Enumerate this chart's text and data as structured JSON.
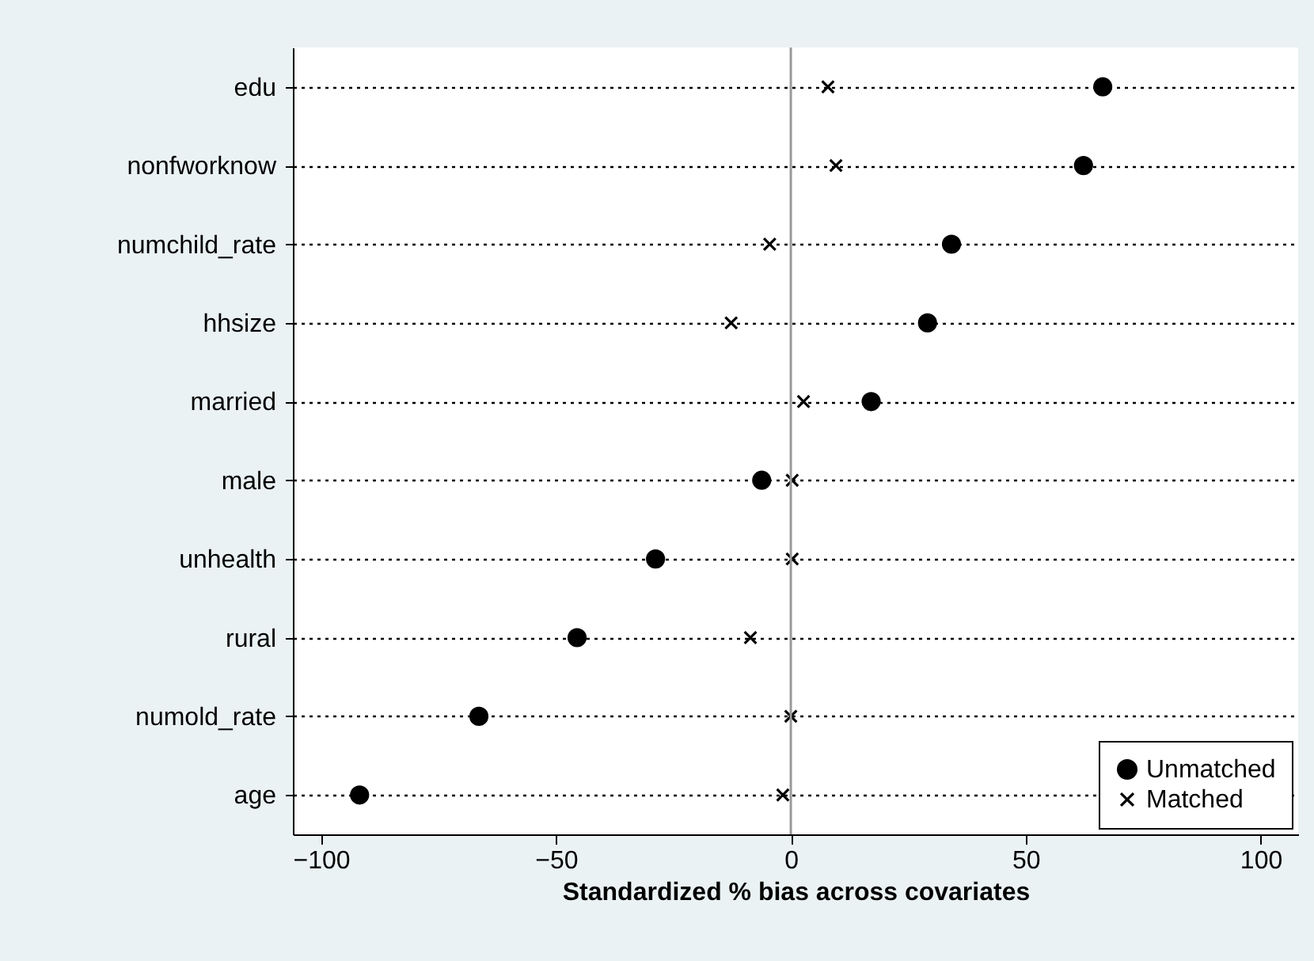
{
  "chart_data": {
    "type": "scatter",
    "xlabel": "Standardized % bias across covariates",
    "categories": [
      "edu",
      "nonfworknow",
      "numchild_rate",
      "hhsize",
      "married",
      "male",
      "unhealth",
      "rural",
      "numold_rate",
      "age"
    ],
    "series": [
      {
        "name": "Unmatched",
        "color": "#000000",
        "marker": "circle",
        "values": [
          66.4,
          62.3,
          34.2,
          29.1,
          17.1,
          -6.2,
          -28.8,
          -45.5,
          -66.4,
          -91.8
        ]
      },
      {
        "name": "Matched",
        "color": "#000000",
        "marker": "cross",
        "values": [
          7.9,
          9.6,
          -4.5,
          -12.7,
          2.7,
          0.3,
          0.3,
          -8.6,
          0,
          -1.7
        ]
      }
    ],
    "orientation": "horizontal",
    "xlim": [
      -106,
      108
    ],
    "xticks": [
      -100,
      -50,
      0,
      50,
      100
    ],
    "grid": "y",
    "legend": "bottom right",
    "ref_lines": [
      {
        "axis": "x",
        "value": 0,
        "color": "#999999"
      }
    ]
  }
}
